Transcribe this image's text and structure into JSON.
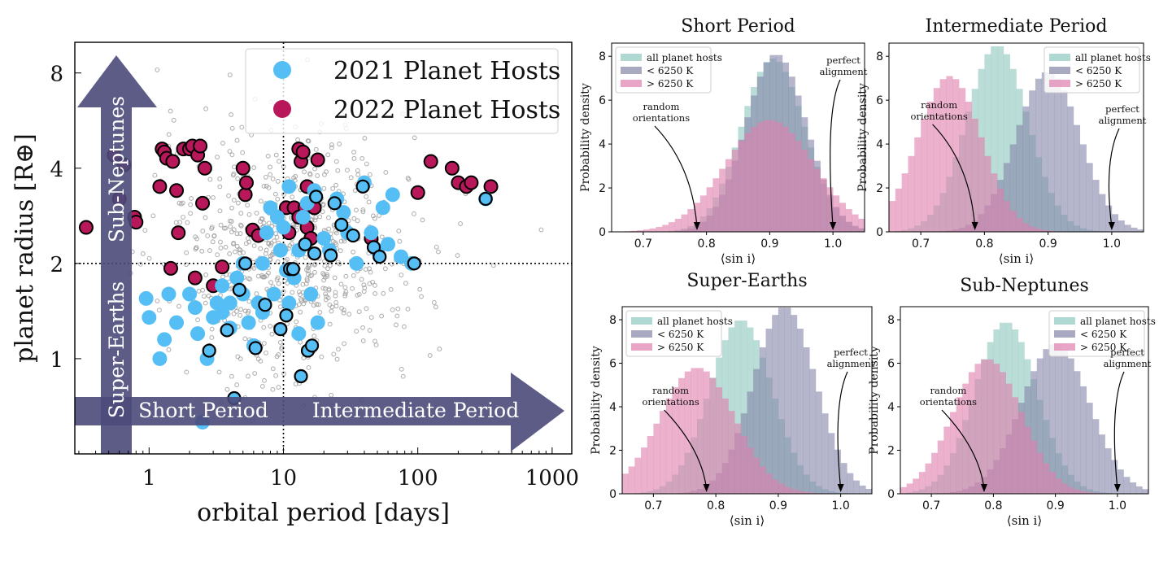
{
  "chart_data": [
    {
      "type": "scatter",
      "xlabel": "orbital period [days]",
      "ylabel": "planet radius [R⊕]",
      "xscale": "log",
      "yscale": "log",
      "xlim": [
        0.28,
        1400
      ],
      "ylim": [
        0.5,
        10
      ],
      "xticks": [
        "1",
        "10",
        "100",
        "1000"
      ],
      "yticks": [
        "1",
        "2",
        "4",
        "8"
      ],
      "legend": [
        "2021 Planet Hosts",
        "2022 Planet Hosts"
      ],
      "legend_position": "top-right",
      "dividers": {
        "period_days": 10,
        "radius": 2
      },
      "region_arrows": [
        "Short Period",
        "Intermediate Period",
        "Super-Earths",
        "Sub-Neptunes"
      ],
      "colors": {
        "hosts_2021": "#55bff5",
        "hosts_2022": "#b8185a",
        "background": "#9a9a9a",
        "arrow": "#4b4a7a"
      },
      "series": [
        {
          "name": "2022 Planet Hosts",
          "points": [
            [
              0.34,
              2.6
            ],
            [
              0.55,
              4.4
            ],
            [
              0.6,
              3.2
            ],
            [
              0.65,
              4.1
            ],
            [
              0.78,
              2.8
            ],
            [
              0.8,
              2.7
            ],
            [
              1.2,
              3.5
            ],
            [
              1.25,
              4.6
            ],
            [
              1.3,
              4.5
            ],
            [
              1.35,
              4.3
            ],
            [
              1.45,
              1.93
            ],
            [
              1.5,
              4.2
            ],
            [
              1.6,
              3.4
            ],
            [
              1.65,
              2.5
            ],
            [
              1.8,
              4.6
            ],
            [
              2.0,
              4.6
            ],
            [
              2.1,
              4.7
            ],
            [
              2.2,
              1.8
            ],
            [
              2.3,
              4.4
            ],
            [
              2.4,
              4.7
            ],
            [
              2.5,
              3.1
            ],
            [
              2.6,
              4.0
            ],
            [
              3.0,
              1.7
            ],
            [
              3.5,
              1.95
            ],
            [
              5.0,
              4.0
            ],
            [
              5.2,
              3.3
            ],
            [
              5.3,
              3.6
            ],
            [
              5.9,
              2.55
            ],
            [
              6.5,
              2.45
            ],
            [
              10.5,
              3.0
            ],
            [
              11,
              2.5
            ],
            [
              12,
              3.0
            ],
            [
              13,
              2.8
            ],
            [
              13,
              4.6
            ],
            [
              13.5,
              4.2
            ],
            [
              14,
              4.5
            ],
            [
              14.5,
              3.0
            ],
            [
              15,
              2.6
            ],
            [
              15,
              3.5
            ],
            [
              16,
              2.4
            ],
            [
              17,
              3.0
            ],
            [
              18,
              4.25
            ],
            [
              45,
              2.4
            ],
            [
              100,
              3.35
            ],
            [
              125,
              4.2
            ],
            [
              180,
              4.0
            ],
            [
              200,
              3.6
            ],
            [
              230,
              3.5
            ],
            [
              250,
              3.6
            ],
            [
              350,
              3.5
            ]
          ]
        },
        {
          "name": "2021 Planet Hosts",
          "points": [
            [
              0.95,
              1.55
            ],
            [
              1.0,
              1.35
            ],
            [
              1.2,
              1.0
            ],
            [
              1.3,
              1.15
            ],
            [
              1.4,
              1.6
            ],
            [
              1.6,
              1.3
            ],
            [
              2.0,
              1.6
            ],
            [
              2.2,
              1.45
            ],
            [
              2.3,
              1.2
            ],
            [
              2.5,
              0.63
            ],
            [
              2.7,
              1.0
            ],
            [
              3.0,
              1.35
            ],
            [
              3.2,
              1.5
            ],
            [
              3.5,
              1.7
            ],
            [
              3.5,
              1.4
            ],
            [
              4.0,
              1.5
            ],
            [
              4.0,
              1.25
            ],
            [
              4.5,
              1.8
            ],
            [
              5.0,
              1.6
            ],
            [
              5.0,
              2.0
            ],
            [
              5.5,
              1.3
            ],
            [
              6.0,
              1.1
            ],
            [
              6.5,
              1.5
            ],
            [
              7.0,
              2.0
            ],
            [
              7.0,
              1.4
            ],
            [
              7.5,
              2.5
            ],
            [
              8.0,
              3.0
            ],
            [
              8.5,
              1.6
            ],
            [
              9.0,
              2.8
            ],
            [
              9.5,
              2.2
            ],
            [
              10,
              2.6
            ],
            [
              10.5,
              1.9
            ],
            [
              11,
              1.5
            ],
            [
              11,
              3.5
            ],
            [
              12,
              1.8
            ],
            [
              13,
              2.2
            ],
            [
              13,
              1.2
            ],
            [
              14,
              2.8
            ],
            [
              15,
              3.1
            ],
            [
              16,
              1.6
            ],
            [
              17,
              3.4
            ],
            [
              18,
              1.3
            ],
            [
              20,
              2.4
            ],
            [
              22,
              2.2
            ],
            [
              25,
              3.2
            ],
            [
              28,
              2.9
            ],
            [
              30,
              2.5
            ],
            [
              35,
              2.0
            ],
            [
              40,
              3.6
            ],
            [
              45,
              2.5
            ],
            [
              50,
              2.2
            ],
            [
              55,
              3.0
            ],
            [
              60,
              2.3
            ],
            [
              65,
              3.3
            ],
            [
              75,
              2.1
            ],
            [
              90,
              2.0
            ],
            [
              320,
              3.2
            ]
          ]
        },
        {
          "name": "2021 Planet Hosts (outlined)",
          "points": [
            [
              2.8,
              1.06
            ],
            [
              3.8,
              1.23
            ],
            [
              4.3,
              0.75
            ],
            [
              4.7,
              1.65
            ],
            [
              5.2,
              2.0
            ],
            [
              6.2,
              1.08
            ],
            [
              7.3,
              1.48
            ],
            [
              9.5,
              1.24
            ],
            [
              10.5,
              1.37
            ],
            [
              11.2,
              1.92
            ],
            [
              11.8,
              1.92
            ],
            [
              13.5,
              0.88
            ],
            [
              14.5,
              2.3
            ],
            [
              15.2,
              1.06
            ],
            [
              16.3,
              1.1
            ],
            [
              17,
              2.15
            ],
            [
              17.5,
              3.25
            ],
            [
              22.5,
              2.12
            ],
            [
              24,
              3.1
            ],
            [
              27,
              2.65
            ],
            [
              33,
              2.45
            ],
            [
              39,
              3.5
            ],
            [
              47,
              2.25
            ],
            [
              52,
              2.1
            ],
            [
              94,
              2.0
            ],
            [
              320,
              3.2
            ]
          ]
        }
      ]
    },
    {
      "type": "histogram",
      "title": "Short Period",
      "xlabel": "⟨sin i⟩",
      "ylabel": "Probability density",
      "xlim": [
        0.65,
        1.05
      ],
      "ylim": [
        0,
        8.6
      ],
      "xticks": [
        "0.7",
        "0.8",
        "0.9",
        "1.0"
      ],
      "yticks": [
        "0",
        "2",
        "4",
        "6",
        "8"
      ],
      "legend_position": "top-left",
      "series": [
        {
          "name": "all planet hosts",
          "color": "#8cc7bd",
          "mean": 0.905,
          "sd": 0.05,
          "peak": 7.9
        },
        {
          "name": "< 6250 K",
          "color": "#8486a8",
          "mean": 0.91,
          "sd": 0.048,
          "peak": 8.1
        },
        {
          "name": "> 6250 K",
          "color": "#e07fac",
          "mean": 0.9,
          "sd": 0.07,
          "peak": 5.1
        }
      ],
      "annotations": [
        {
          "text": "random orientations",
          "x": 0.785
        },
        {
          "text": "perfect alignment",
          "x": 1.0
        }
      ]
    },
    {
      "type": "histogram",
      "title": "Intermediate Period",
      "xlabel": "⟨sin i⟩",
      "ylabel": "Probability density",
      "xlim": [
        0.65,
        1.05
      ],
      "ylim": [
        0,
        8.6
      ],
      "xticks": [
        "0.7",
        "0.8",
        "0.9",
        "1.0"
      ],
      "yticks": [
        "0",
        "2",
        "4",
        "6",
        "8"
      ],
      "legend_position": "top-right",
      "series": [
        {
          "name": "all planet hosts",
          "color": "#8cc7bd",
          "mean": 0.82,
          "sd": 0.048,
          "peak": 8.5
        },
        {
          "name": "< 6250 K",
          "color": "#8486a8",
          "mean": 0.9,
          "sd": 0.05,
          "peak": 7.3
        },
        {
          "name": "> 6250 K",
          "color": "#e07fac",
          "mean": 0.745,
          "sd": 0.05,
          "peak": 7.1
        }
      ],
      "annotations": [
        {
          "text": "random orientations",
          "x": 0.785
        },
        {
          "text": "perfect alignment",
          "x": 1.0
        }
      ]
    },
    {
      "type": "histogram",
      "title": "Super-Earths",
      "xlabel": "⟨sin i⟩",
      "ylabel": "Probability density",
      "xlim": [
        0.65,
        1.05
      ],
      "ylim": [
        0,
        8.6
      ],
      "xticks": [
        "0.7",
        "0.8",
        "0.9",
        "1.0"
      ],
      "yticks": [
        "0",
        "2",
        "4",
        "6",
        "8"
      ],
      "legend_position": "top-left",
      "series": [
        {
          "name": "all planet hosts",
          "color": "#8cc7bd",
          "mean": 0.84,
          "sd": 0.05,
          "peak": 8.0
        },
        {
          "name": "< 6250 K",
          "color": "#8486a8",
          "mean": 0.91,
          "sd": 0.05,
          "peak": 8.6
        },
        {
          "name": "> 6250 K",
          "color": "#e07fac",
          "mean": 0.77,
          "sd": 0.06,
          "peak": 5.8
        }
      ],
      "annotations": [
        {
          "text": "random orientations",
          "x": 0.785
        },
        {
          "text": "perfect alignment",
          "x": 1.0
        }
      ]
    },
    {
      "type": "histogram",
      "title": "Sub-Neptunes",
      "xlabel": "⟨sin i⟩",
      "ylabel": "Probability density",
      "xlim": [
        0.65,
        1.05
      ],
      "ylim": [
        0,
        8.6
      ],
      "xticks": [
        "0.7",
        "0.8",
        "0.9",
        "1.0"
      ],
      "yticks": [
        "0",
        "2",
        "4",
        "6",
        "8"
      ],
      "legend_position": "top-right",
      "series": [
        {
          "name": "all planet hosts",
          "color": "#8cc7bd",
          "mean": 0.82,
          "sd": 0.05,
          "peak": 7.9
        },
        {
          "name": "< 6250 K",
          "color": "#8486a8",
          "mean": 0.9,
          "sd": 0.055,
          "peak": 6.9
        },
        {
          "name": "> 6250 K",
          "color": "#e07fac",
          "mean": 0.79,
          "sd": 0.055,
          "peak": 6.2
        }
      ],
      "annotations": [
        {
          "text": "random orientations",
          "x": 0.785
        },
        {
          "text": "perfect alignment",
          "x": 1.0
        }
      ]
    }
  ]
}
